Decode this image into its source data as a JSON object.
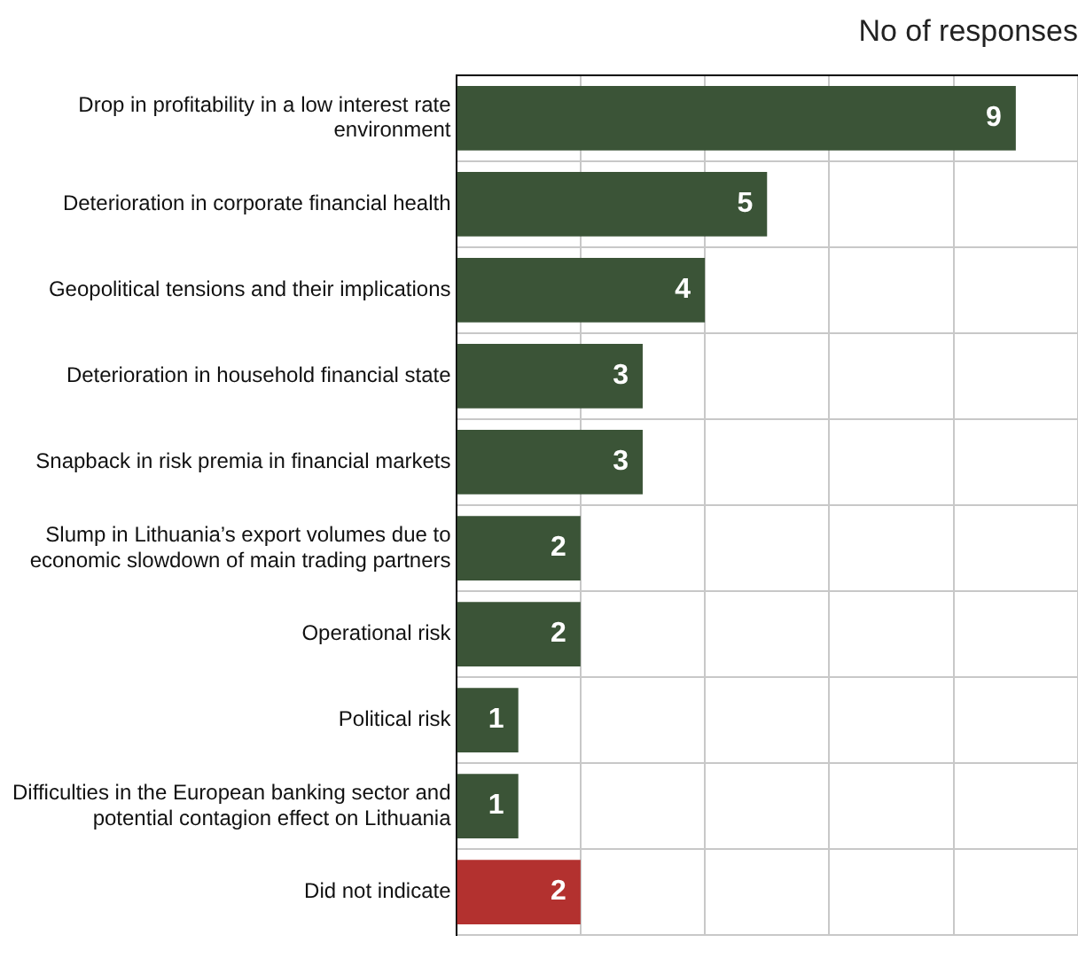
{
  "chart_data": {
    "type": "bar",
    "orientation": "horizontal",
    "xlabel": "No of responses",
    "categories": [
      "Drop in profitability in a low interest rate environment",
      "Deterioration in corporate financial health",
      "Geopolitical tensions and their implications",
      "Deterioration in household financial state",
      "Snapback in risk premia in financial markets",
      "Slump in Lithuania’s export volumes due to economic slowdown of main trading partners",
      "Operational risk",
      "Political risk",
      "Difficulties in the European banking sector and potential contagion effect on Lithuania",
      "Did not indicate"
    ],
    "values": [
      9,
      5,
      4,
      3,
      3,
      2,
      2,
      1,
      1,
      2
    ],
    "colors": [
      "#3b5437",
      "#3b5437",
      "#3b5437",
      "#3b5437",
      "#3b5437",
      "#3b5437",
      "#3b5437",
      "#3b5437",
      "#3b5437",
      "#b3312f"
    ],
    "xlim": [
      0,
      10
    ],
    "xticks": [
      {
        "value": 0,
        "label": null
      },
      {
        "value": 2,
        "label": null
      },
      {
        "value": 4,
        "label": null
      },
      {
        "value": 6,
        "label": null
      },
      {
        "value": 8,
        "label": null
      },
      {
        "value": 10,
        "label": null
      }
    ],
    "grid": true,
    "tick_labels": "y",
    "data_labels": true
  }
}
